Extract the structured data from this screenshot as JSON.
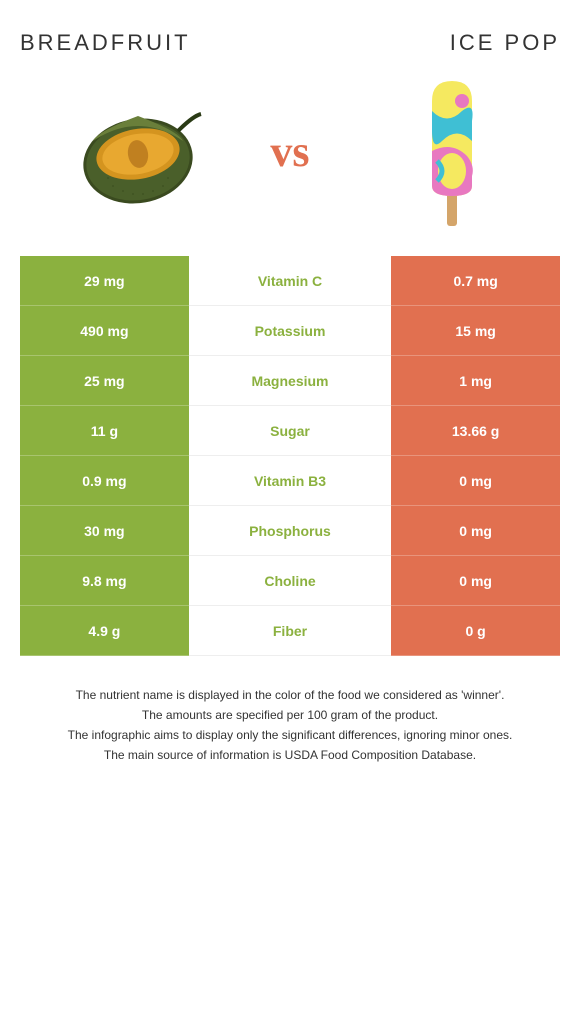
{
  "leftFood": "BREADFRUIT",
  "rightFood": "ICE POP",
  "vs": "vs",
  "colors": {
    "left": "#8bb13f",
    "right": "#e17050"
  },
  "rows": [
    {
      "left": "29 mg",
      "label": "Vitamin C",
      "right": "0.7 mg",
      "winner": "left"
    },
    {
      "left": "490 mg",
      "label": "Potassium",
      "right": "15 mg",
      "winner": "left"
    },
    {
      "left": "25 mg",
      "label": "Magnesium",
      "right": "1 mg",
      "winner": "left"
    },
    {
      "left": "11 g",
      "label": "Sugar",
      "right": "13.66 g",
      "winner": "left"
    },
    {
      "left": "0.9 mg",
      "label": "Vitamin B3",
      "right": "0 mg",
      "winner": "left"
    },
    {
      "left": "30 mg",
      "label": "Phosphorus",
      "right": "0 mg",
      "winner": "left"
    },
    {
      "left": "9.8 mg",
      "label": "Choline",
      "right": "0 mg",
      "winner": "left"
    },
    {
      "left": "4.9 g",
      "label": "Fiber",
      "right": "0 g",
      "winner": "left"
    }
  ],
  "footer": [
    "The nutrient name is displayed in the color of the food we considered as 'winner'.",
    "The amounts are specified per 100 gram of the product.",
    "The infographic aims to display only the significant differences, ignoring minor ones.",
    "The main source of information is USDA Food Composition Database."
  ]
}
